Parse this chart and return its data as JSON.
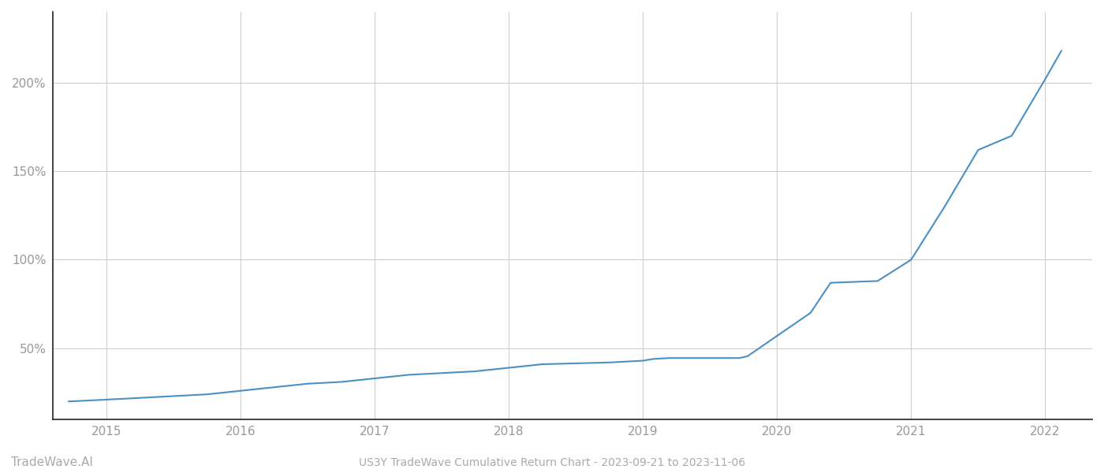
{
  "title": "US3Y TradeWave Cumulative Return Chart - 2023-09-21 to 2023-11-06",
  "watermark": "TradeWave.AI",
  "line_color": "#4a90c4",
  "background_color": "#ffffff",
  "grid_color": "#cccccc",
  "x_years": [
    2014.72,
    2015.0,
    2015.25,
    2015.5,
    2015.75,
    2016.0,
    2016.25,
    2016.5,
    2016.75,
    2017.0,
    2017.25,
    2017.5,
    2017.75,
    2018.0,
    2018.25,
    2018.5,
    2018.75,
    2019.0,
    2019.08,
    2019.2,
    2019.4,
    2019.6,
    2019.72,
    2019.78,
    2020.0,
    2020.25,
    2020.4,
    2020.75,
    2021.0,
    2021.25,
    2021.5,
    2021.75,
    2022.0,
    2022.12
  ],
  "y_values": [
    20,
    21,
    22,
    23,
    24,
    26,
    28,
    30,
    31,
    33,
    35,
    36,
    37,
    39,
    41,
    41.5,
    42,
    43,
    44,
    44.5,
    44.5,
    44.5,
    44.5,
    45.5,
    57,
    70,
    87,
    88,
    100,
    130,
    162,
    170,
    202,
    218
  ],
  "xlim": [
    2014.6,
    2022.35
  ],
  "ylim": [
    10,
    240
  ],
  "yticks": [
    50,
    100,
    150,
    200
  ],
  "ytick_labels": [
    "50%",
    "100%",
    "150%",
    "200%"
  ],
  "xtick_years": [
    2015,
    2016,
    2017,
    2018,
    2019,
    2020,
    2021,
    2022
  ],
  "title_fontsize": 10,
  "watermark_fontsize": 11,
  "axis_label_fontsize": 11,
  "line_width": 1.5,
  "spine_color": "#222222",
  "tick_color": "#999999"
}
